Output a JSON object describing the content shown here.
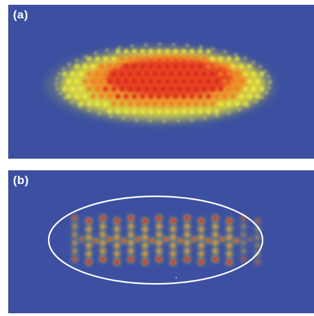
{
  "panels": [
    {
      "label": "(a)",
      "description_hidden": false
    },
    {
      "label": "(b)"
    }
  ],
  "colors": {
    "background_blue": "#3c4fa0",
    "glow_yellow": "#ece82e",
    "core_orange": "#f07a28",
    "core_red": "#e63020",
    "outline_white": "#ffffff"
  }
}
